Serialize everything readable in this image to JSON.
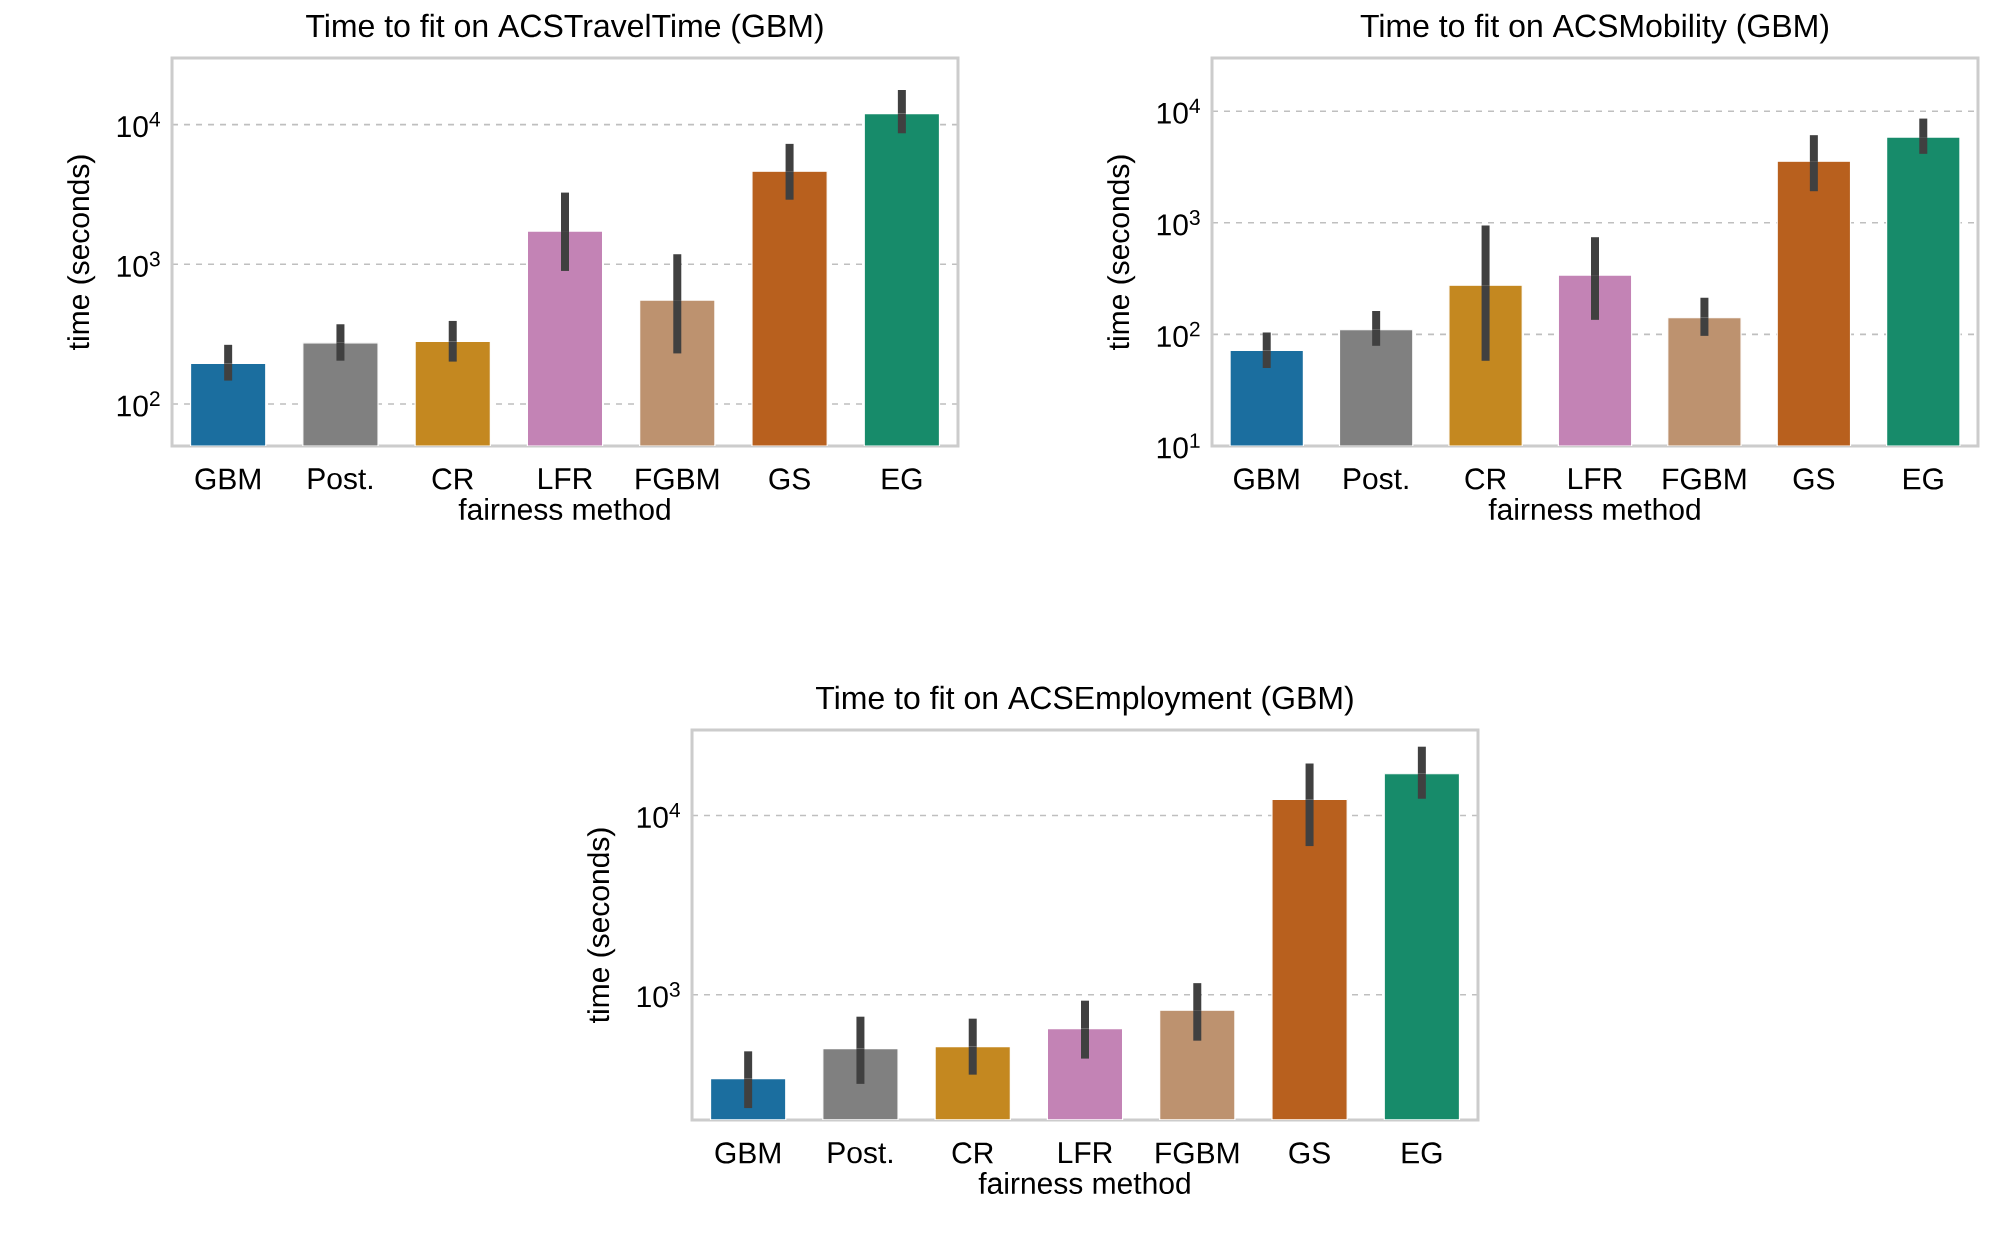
{
  "chart_data": [
    {
      "type": "bar",
      "title": "Time to fit on ACSTravelTime (GBM)",
      "xlabel": "fairness method",
      "ylabel": "time (seconds)",
      "log": true,
      "grid": "y",
      "categories": [
        "GBM",
        "Post.",
        "CR",
        "LFR",
        "FGBM",
        "GS",
        "EG"
      ],
      "colors": [
        "#1b6e9f",
        "#808080",
        "#c48820",
        "#c383b5",
        "#bd926f",
        "#b8601e",
        "#178b6a"
      ],
      "values": [
        195,
        274,
        280,
        1730,
        554,
        4640,
        12000
      ],
      "errors": [
        [
          147,
          265
        ],
        [
          204,
          372
        ],
        [
          201,
          393
        ],
        [
          896,
          3260
        ],
        [
          230,
          1180
        ],
        [
          2900,
          7280
        ],
        [
          8670,
          17700
        ]
      ],
      "ylim": [
        50,
        30000
      ],
      "yticks": [
        {
          "value": 100,
          "label": "10$^{2}$"
        },
        {
          "value": 1000,
          "label": "10$^{3}$"
        },
        {
          "value": 10000,
          "label": "10$^{4}$"
        }
      ]
    },
    {
      "type": "bar",
      "title": "Time to fit on ACSMobility (GBM)",
      "xlabel": "fairness method",
      "ylabel": "time (seconds)",
      "log": true,
      "grid": "y",
      "categories": [
        "GBM",
        "Post.",
        "CR",
        "LFR",
        "FGBM",
        "GS",
        "EG"
      ],
      "colors": [
        "#1b6e9f",
        "#808080",
        "#c48820",
        "#c383b5",
        "#bd926f",
        "#b8601e",
        "#178b6a"
      ],
      "values": [
        72,
        110,
        276,
        340,
        141,
        3570,
        5860
      ],
      "errors": [
        [
          50,
          104
        ],
        [
          79,
          162
        ],
        [
          58,
          946
        ],
        [
          135,
          743
        ],
        [
          97,
          213
        ],
        [
          1920,
          6100
        ],
        [
          4150,
          8590
        ]
      ],
      "ylim": [
        10,
        30000
      ],
      "yticks": [
        {
          "value": 10,
          "label": "10$^{1}$"
        },
        {
          "value": 100,
          "label": "10$^{2}$"
        },
        {
          "value": 1000,
          "label": "10$^{3}$"
        },
        {
          "value": 10000,
          "label": "10$^{4}$"
        }
      ]
    },
    {
      "type": "bar",
      "title": "Time to fit on ACSEmployment (GBM)",
      "xlabel": "fairness method",
      "ylabel": "time (seconds)",
      "log": true,
      "grid": "y",
      "categories": [
        "GBM",
        "Post.",
        "CR",
        "LFR",
        "FGBM",
        "GS",
        "EG"
      ],
      "colors": [
        "#1b6e9f",
        "#808080",
        "#c48820",
        "#c383b5",
        "#bd926f",
        "#b8601e",
        "#178b6a"
      ],
      "values": [
        340,
        500,
        513,
        646,
        820,
        12300,
        17100
      ],
      "errors": [
        [
          233,
          483
        ],
        [
          318,
          754
        ],
        [
          358,
          735
        ],
        [
          440,
          926
        ],
        [
          554,
          1160
        ],
        [
          6750,
          19500
        ],
        [
          12400,
          24200
        ]
      ],
      "ylim": [
        200,
        30000
      ],
      "yticks": [
        {
          "value": 1000,
          "label": "10$^{3}$"
        },
        {
          "value": 10000,
          "label": "10$^{4}$"
        }
      ]
    }
  ]
}
